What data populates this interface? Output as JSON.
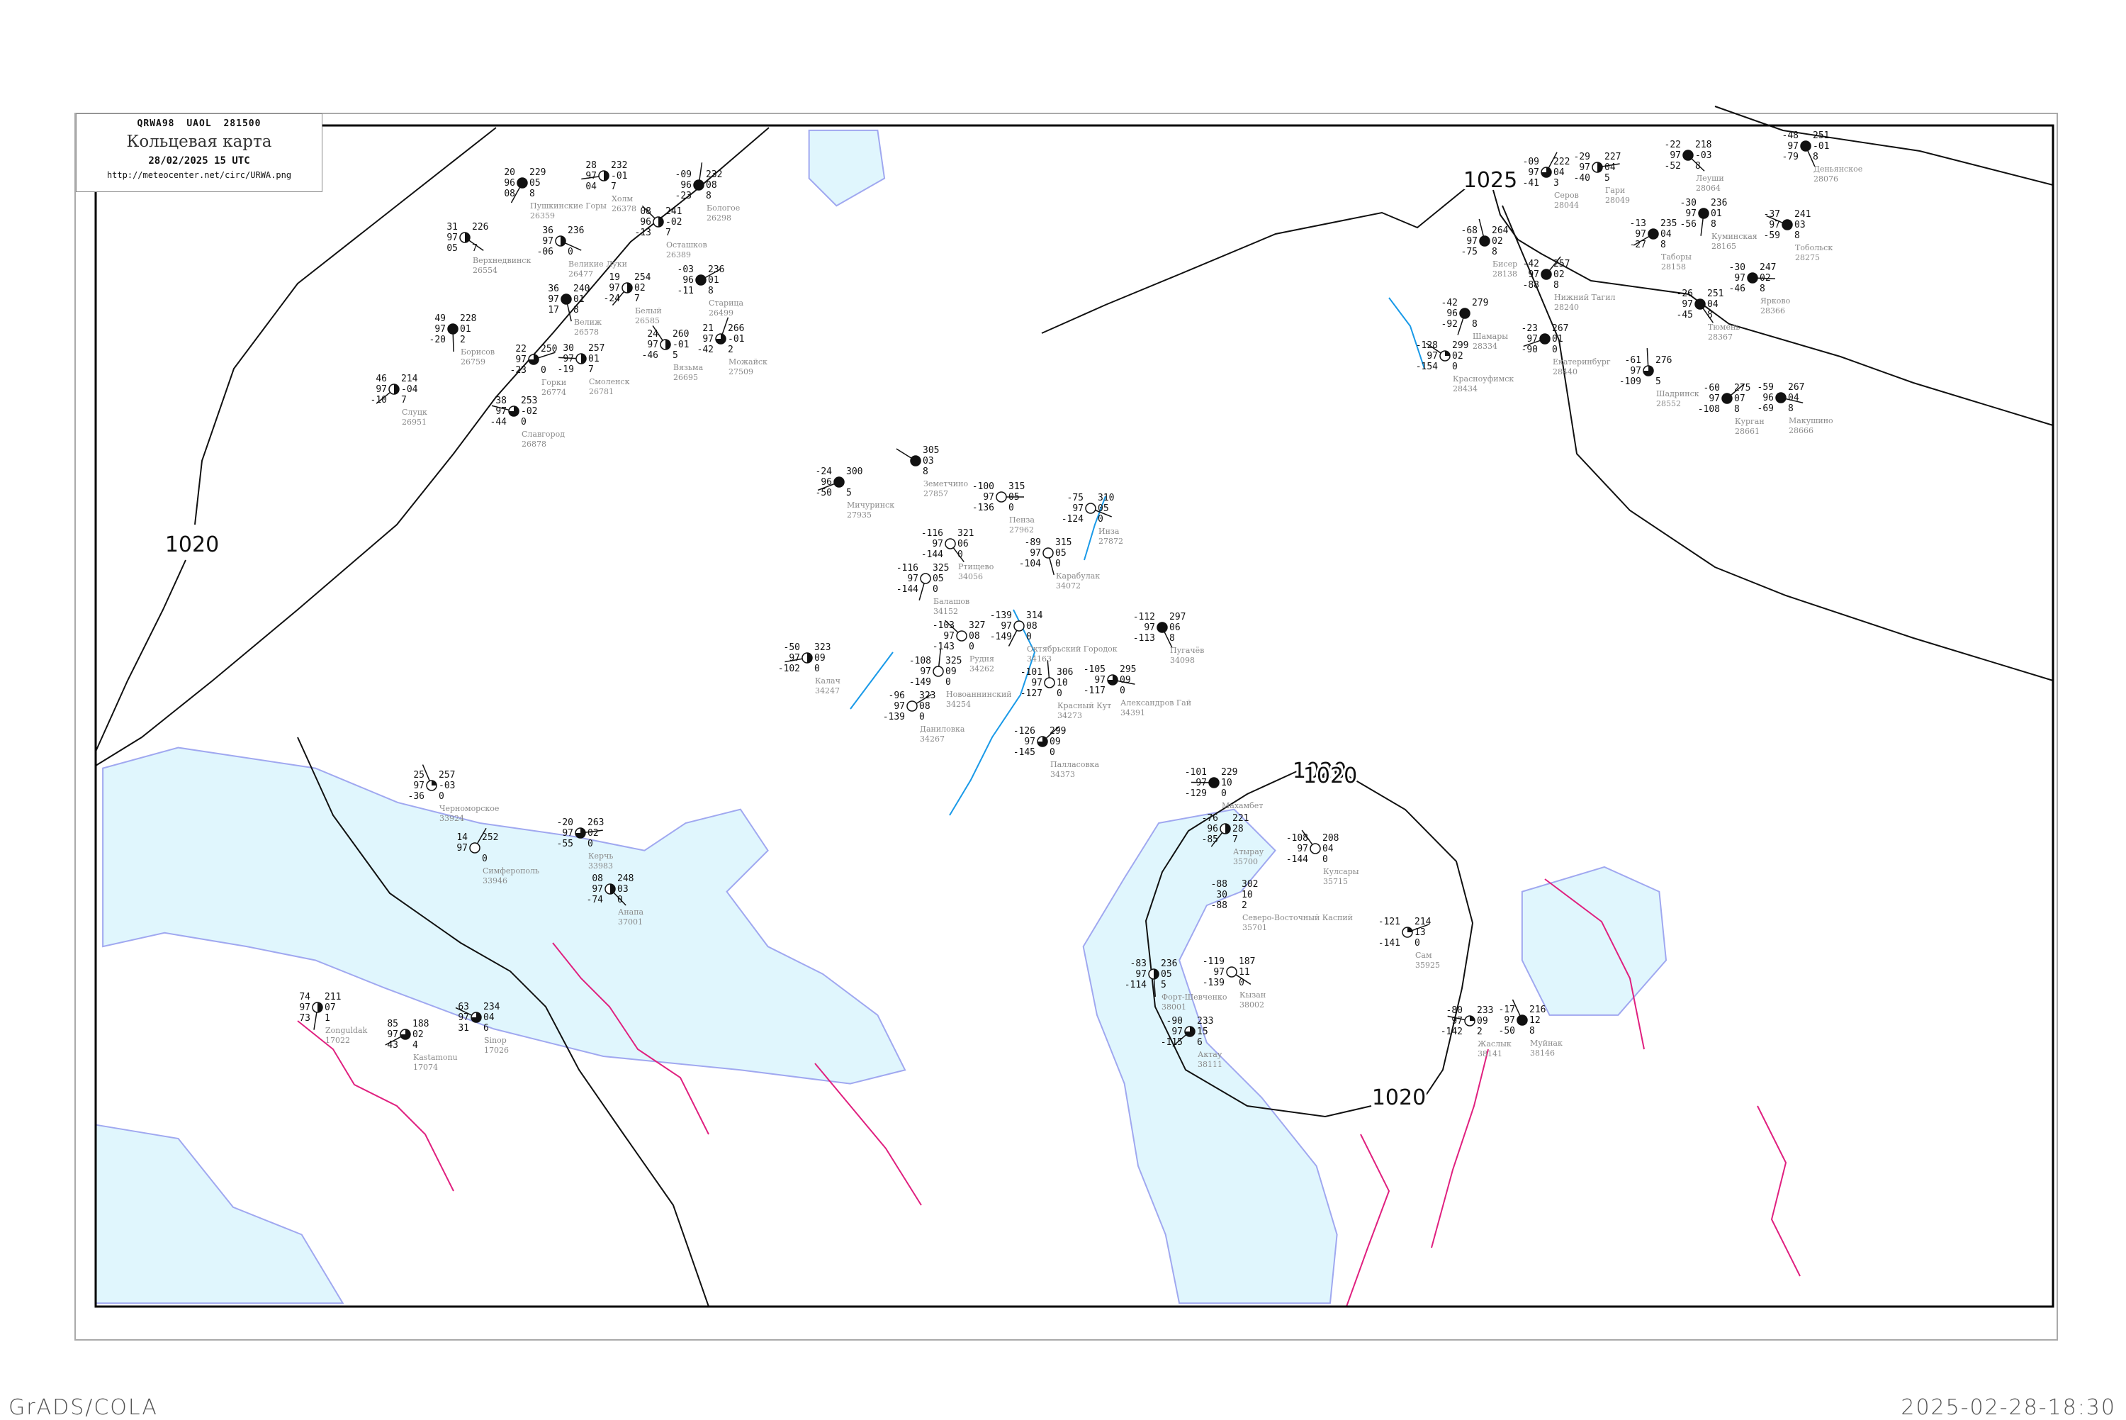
{
  "header": {
    "code": "QRWA98  UAOL  281500",
    "title": "Кольцевая карта",
    "datetime": "28/02/2025 15 UTC",
    "url": "http://meteocenter.net/circ/URWA.png"
  },
  "footer": {
    "left": "GrADS/COLA",
    "right": "2025-02-28-18:30"
  },
  "colors": {
    "sea": "#e0f6fd",
    "coast": "#a0a8f0",
    "isobar": "#111111",
    "border": "#e0207f",
    "river": "#1a9ae8",
    "station_label": "#8a8a8a"
  },
  "isobar_labels": [
    "1020",
    "1020",
    "1025",
    "1020",
    "1020"
  ],
  "stations": [
    {
      "name": "Пенза",
      "id": "27962",
      "t": "-100",
      "n": "97",
      "td": "-136",
      "p": "315",
      "dp": "05",
      "r": "0",
      "cover": 0
    },
    {
      "name": "Ртищево",
      "id": "34056",
      "t": "-116",
      "n": "97",
      "td": "-144",
      "p": "321",
      "dp": "06",
      "r": "0",
      "cover": 0
    },
    {
      "name": "Балашов",
      "id": "34152",
      "t": "-116",
      "n": "97",
      "td": "-144",
      "p": "325",
      "dp": "05",
      "r": "0",
      "cover": 0
    },
    {
      "name": "Мичуринск",
      "id": "27935",
      "t": "-24",
      "n": "96",
      "td": "-50",
      "p": "300",
      "dp": "",
      "r": "5",
      "cover": 1
    },
    {
      "name": "Земетчино",
      "id": "27857",
      "t": "",
      "n": "",
      "td": "",
      "p": "305",
      "dp": "03",
      "r": "8",
      "cover": 1
    },
    {
      "name": "Красный Кут",
      "id": "34273",
      "t": "-101",
      "n": "97",
      "td": "-127",
      "p": "306",
      "dp": "10",
      "r": "0",
      "cover": 0
    },
    {
      "name": "Палласовка",
      "id": "34373",
      "t": "-126",
      "n": "97",
      "td": "-145",
      "p": "299",
      "dp": "09",
      "r": "0",
      "cover": 0.75
    },
    {
      "name": "Александров Гай",
      "id": "34391",
      "t": "-105",
      "n": "97",
      "td": "-117",
      "p": "295",
      "dp": "09",
      "r": "0",
      "cover": 0.75
    },
    {
      "name": "Пугачёв",
      "id": "34098",
      "t": "-112",
      "n": "97",
      "td": "-113",
      "p": "297",
      "dp": "06",
      "r": "8",
      "cover": 1
    },
    {
      "name": "Октябрьский Городок",
      "id": "34163",
      "t": "-139",
      "n": "97",
      "td": "-149",
      "p": "314",
      "dp": "08",
      "r": "0",
      "cover": 0
    },
    {
      "name": "Калач",
      "id": "34247",
      "t": "-50",
      "n": "97",
      "td": "-102",
      "p": "323",
      "dp": "09",
      "r": "0",
      "cover": 0.5
    },
    {
      "name": "Рудня",
      "id": "34262",
      "t": "-103",
      "n": "97",
      "td": "-143",
      "p": "327",
      "dp": "08",
      "r": "0",
      "cover": 0
    },
    {
      "name": "Новоаннинский",
      "id": "34254",
      "t": "-108",
      "n": "97",
      "td": "-149",
      "p": "325",
      "dp": "09",
      "r": "0",
      "cover": 0
    },
    {
      "name": "Даниловка",
      "id": "34267",
      "t": "-96",
      "n": "97",
      "td": "-139",
      "p": "323",
      "dp": "08",
      "r": "0",
      "cover": 0
    },
    {
      "name": "Инза",
      "id": "27872",
      "t": "-75",
      "n": "97",
      "td": "-124",
      "p": "310",
      "dp": "05",
      "r": "0",
      "cover": 0
    },
    {
      "name": "Карабулак",
      "id": "34072",
      "t": "-89",
      "n": "97",
      "td": "-104",
      "p": "315",
      "dp": "05",
      "r": "0",
      "cover": 0
    },
    {
      "name": "Атырау",
      "id": "35700",
      "t": "-76",
      "n": "96",
      "td": "-85",
      "p": "221",
      "dp": "28",
      "r": "7",
      "cover": 0.5
    },
    {
      "name": "Махамбет",
      "id": "",
      "t": "-101",
      "n": "97",
      "td": "-129",
      "p": "229",
      "dp": "10",
      "r": "0",
      "cover": 1
    },
    {
      "name": "Кулсары",
      "id": "35715",
      "t": "-108",
      "n": "97",
      "td": "-144",
      "p": "208",
      "dp": "04",
      "r": "0",
      "cover": 0
    },
    {
      "name": "Северо-Восточный Каспий",
      "id": "35701",
      "t": "-88",
      "n": "30",
      "td": "-88",
      "p": "302",
      "dp": "10",
      "r": "2",
      "cover": null
    },
    {
      "name": "Сам",
      "id": "35925",
      "t": "-121",
      "n": "",
      "td": "-141",
      "p": "214",
      "dp": "13",
      "r": "0",
      "cover": 0.25
    },
    {
      "name": "Кызан",
      "id": "38002",
      "t": "-119",
      "n": "97",
      "td": "-139",
      "p": "187",
      "dp": "11",
      "r": "0",
      "cover": 0
    },
    {
      "name": "Форт-Шевченко",
      "id": "38001",
      "t": "-83",
      "n": "97",
      "td": "-114",
      "p": "236",
      "dp": "05",
      "r": "5",
      "cover": 0.5
    },
    {
      "name": "Актау",
      "id": "38111",
      "t": "-90",
      "n": "97",
      "td": "-115",
      "p": "233",
      "dp": "15",
      "r": "6",
      "cover": 0.75
    },
    {
      "name": "Жаслык",
      "id": "38141",
      "t": "-80",
      "n": "97",
      "td": "-142",
      "p": "233",
      "dp": "09",
      "r": "2",
      "cover": 0.25
    },
    {
      "name": "Муйнак",
      "id": "38146",
      "t": "-17",
      "n": "97",
      "td": "-50",
      "p": "216",
      "dp": "12",
      "r": "8",
      "cover": 1
    },
    {
      "name": "Серов",
      "id": "28044",
      "t": "-09",
      "n": "97",
      "td": "-41",
      "p": "222",
      "dp": "04",
      "r": "3",
      "cover": 0.75
    },
    {
      "name": "Гари",
      "id": "28049",
      "t": "-29",
      "n": "97",
      "td": "-40",
      "p": "227",
      "dp": "04",
      "r": "5",
      "cover": 0.5
    },
    {
      "name": "Леуши",
      "id": "28064",
      "t": "-22",
      "n": "97",
      "td": "-52",
      "p": "218",
      "dp": "-03",
      "r": "8",
      "cover": 1
    },
    {
      "name": "Куминская",
      "id": "28165",
      "t": "-30",
      "n": "97",
      "td": "-56",
      "p": "236",
      "dp": "01",
      "r": "8",
      "cover": 1
    },
    {
      "name": "Таборы",
      "id": "28158",
      "t": "-13",
      "n": "97",
      "td": "-27",
      "p": "235",
      "dp": "04",
      "r": "8",
      "cover": 1
    },
    {
      "name": "Тобольск",
      "id": "28275",
      "t": "-37",
      "n": "97",
      "td": "-59",
      "p": "241",
      "dp": "03",
      "r": "8",
      "cover": 1
    },
    {
      "name": "Бисер",
      "id": "28138",
      "t": "-68",
      "n": "97",
      "td": "-75",
      "p": "264",
      "dp": "02",
      "r": "8",
      "cover": 1
    },
    {
      "name": "Нижний Тагил",
      "id": "28240",
      "t": "-42",
      "n": "97",
      "td": "-88",
      "p": "257",
      "dp": "02",
      "r": "8",
      "cover": 1
    },
    {
      "name": "Ярково",
      "id": "28366",
      "t": "-30",
      "n": "97",
      "td": "-46",
      "p": "247",
      "dp": "02",
      "r": "8",
      "cover": 1
    },
    {
      "name": "Тюмень",
      "id": "28367",
      "t": "-26",
      "n": "97",
      "td": "-45",
      "p": "251",
      "dp": "04",
      "r": "8",
      "cover": 1
    },
    {
      "name": "Шамары",
      "id": "28334",
      "t": "-42",
      "n": "96",
      "td": "-92",
      "p": "279",
      "dp": "",
      "r": "8",
      "cover": 1
    },
    {
      "name": "Екатеринбург",
      "id": "28440",
      "t": "-23",
      "n": "97",
      "td": "-90",
      "p": "267",
      "dp": "01",
      "r": "0",
      "cover": 1
    },
    {
      "name": "Красноуфимск",
      "id": "28434",
      "t": "-128",
      "n": "97",
      "td": "-154",
      "p": "299",
      "dp": "02",
      "r": "0",
      "cover": 0.25
    },
    {
      "name": "Шадринск",
      "id": "28552",
      "t": "-61",
      "n": "97",
      "td": "-109",
      "p": "276",
      "dp": "",
      "r": "5",
      "cover": 0.75
    },
    {
      "name": "Курган",
      "id": "28661",
      "t": "-60",
      "n": "97",
      "td": "-108",
      "p": "275",
      "dp": "07",
      "r": "8",
      "cover": 1
    },
    {
      "name": "Макушино",
      "id": "28666",
      "t": "-59",
      "n": "96",
      "td": "-69",
      "p": "267",
      "dp": "04",
      "r": "8",
      "cover": 1
    },
    {
      "name": "Деньянское",
      "id": "28076",
      "t": "-48",
      "n": "97",
      "td": "-79",
      "p": "251",
      "dp": "-01",
      "r": "8",
      "cover": 1
    },
    {
      "name": "Пушкинские Горы",
      "id": "26359",
      "t": "20",
      "n": "96",
      "td": "08",
      "p": "229",
      "dp": "05",
      "r": "8",
      "cover": 1
    },
    {
      "name": "Холм",
      "id": "26378",
      "t": "28",
      "n": "97",
      "td": "04",
      "p": "232",
      "dp": "-01",
      "r": "7",
      "cover": 0.5
    },
    {
      "name": "Осташков",
      "id": "26389",
      "t": "08",
      "n": "96",
      "td": "-13",
      "p": "241",
      "dp": "-02",
      "r": "7",
      "cover": 0.5
    },
    {
      "name": "Бологое",
      "id": "26298",
      "t": "-09",
      "n": "96",
      "td": "-23",
      "p": "232",
      "dp": "08",
      "r": "8",
      "cover": 1
    },
    {
      "name": "Старица",
      "id": "26499",
      "t": "-03",
      "n": "96",
      "td": "-11",
      "p": "236",
      "dp": "01",
      "r": "8",
      "cover": 1
    },
    {
      "name": "Великие Луки",
      "id": "26477",
      "t": "36",
      "n": "97",
      "td": "-06",
      "p": "236",
      "dp": "",
      "r": "0",
      "cover": 0.5
    },
    {
      "name": "Велиж",
      "id": "26578",
      "t": "36",
      "n": "97",
      "td": "17",
      "p": "240",
      "dp": "01",
      "r": "8",
      "cover": 1
    },
    {
      "name": "Белый",
      "id": "26585",
      "t": "19",
      "n": "97",
      "td": "-24",
      "p": "254",
      "dp": "02",
      "r": "7",
      "cover": 0.5
    },
    {
      "name": "Смоленск",
      "id": "26781",
      "t": "30",
      "n": "97",
      "td": "-19",
      "p": "257",
      "dp": "01",
      "r": "7",
      "cover": 0.5
    },
    {
      "name": "Вязьма",
      "id": "26695",
      "t": "24",
      "n": "97",
      "td": "-46",
      "p": "260",
      "dp": "-01",
      "r": "5",
      "cover": 0.5
    },
    {
      "name": "Можайск",
      "id": "27509",
      "t": "21",
      "n": "97",
      "td": "-42",
      "p": "266",
      "dp": "-01",
      "r": "2",
      "cover": 0.75
    },
    {
      "name": "Горки",
      "id": "26774",
      "t": "22",
      "n": "97",
      "td": "-23",
      "p": "250",
      "dp": "",
      "r": "0",
      "cover": 0.75
    },
    {
      "name": "Верхнедвинск",
      "id": "26554",
      "t": "31",
      "n": "97",
      "td": "05",
      "p": "226",
      "dp": "",
      "r": "7",
      "cover": 0.5
    },
    {
      "name": "Борисов",
      "id": "26759",
      "t": "49",
      "n": "97",
      "td": "-20",
      "p": "228",
      "dp": "01",
      "r": "2",
      "cover": 1
    },
    {
      "name": "Слуцк",
      "id": "26951",
      "t": "46",
      "n": "97",
      "td": "-10",
      "p": "214",
      "dp": "-04",
      "r": "7",
      "cover": 0.5
    },
    {
      "name": "Славгород",
      "id": "26878",
      "t": "38",
      "n": "97",
      "td": "-44",
      "p": "253",
      "dp": "-02",
      "r": "0",
      "cover": 0.75
    },
    {
      "name": "Черноморское",
      "id": "33924",
      "t": "25",
      "n": "97",
      "td": "-36",
      "p": "257",
      "dp": "-03",
      "r": "0",
      "cover": 0.25
    },
    {
      "name": "Симферополь",
      "id": "33946",
      "t": "14",
      "n": "97",
      "td": "",
      "p": "252",
      "dp": "",
      "r": "0",
      "cover": 0
    },
    {
      "name": "Керчь",
      "id": "33983",
      "t": "-20",
      "n": "97",
      "td": "-55",
      "p": "263",
      "dp": "02",
      "r": "0",
      "cover": 0.75
    },
    {
      "name": "Анапа",
      "id": "37001",
      "t": "08",
      "n": "97",
      "td": "-74",
      "p": "248",
      "dp": "03",
      "r": "0",
      "cover": 0.5
    },
    {
      "name": "Zonguldak",
      "id": "17022",
      "t": "74",
      "n": "97",
      "td": "73",
      "p": "211",
      "dp": "07",
      "r": "1",
      "cover": 0.5
    },
    {
      "name": "Kastamonu",
      "id": "17074",
      "t": "85",
      "n": "97",
      "td": "43",
      "p": "188",
      "dp": "02",
      "r": "4",
      "cover": 0.75
    },
    {
      "name": "Sinop",
      "id": "17026",
      "t": "63",
      "n": "97",
      "td": "31",
      "p": "234",
      "dp": "04",
      "r": "6",
      "cover": 0.75
    }
  ]
}
